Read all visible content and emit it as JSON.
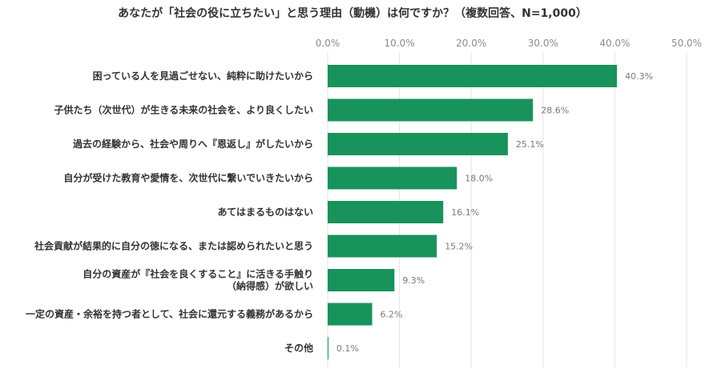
{
  "chart_data": {
    "type": "bar",
    "orientation": "horizontal",
    "title": "あなたが「社会の役に立ちたい」と思う理由（動機）は何ですか？（複数回答、N=1,000）",
    "xlabel": "",
    "ylabel": "",
    "xlim": [
      0,
      50
    ],
    "ticks": [
      "0.0%",
      "10.0%",
      "20.0%",
      "30.0%",
      "40.0%",
      "50.0%"
    ],
    "tick_values": [
      0,
      10,
      20,
      30,
      40,
      50
    ],
    "grid": true,
    "categories": [
      [
        "困っている人を見過ごせない、純粋に助けたいから"
      ],
      [
        "子供たち（次世代）が生きる未来の社会を、より良くしたい"
      ],
      [
        "過去の経験から、社会や周りへ『恩返し』がしたいから"
      ],
      [
        "自分が受けた教育や愛情を、次世代に繋いでいきたいから"
      ],
      [
        "あてはまるものはない"
      ],
      [
        "社会貢献が結果的に自分の徳になる、または認められたいと思う"
      ],
      [
        "自分の資産が『社会を良くすること』に活きる手触り",
        "（納得感）が欲しい"
      ],
      [
        "一定の資産・余裕を持つ者として、社会に還元する義務があるから"
      ],
      [
        "その他"
      ]
    ],
    "values": [
      40.3,
      28.6,
      25.1,
      18.0,
      16.1,
      15.2,
      9.3,
      6.2,
      0.1
    ],
    "value_labels": [
      "40.3%",
      "28.6%",
      "25.1%",
      "18.0%",
      "16.1%",
      "15.2%",
      "9.3%",
      "6.2%",
      "0.1%"
    ],
    "bar_color": "#17935b"
  }
}
